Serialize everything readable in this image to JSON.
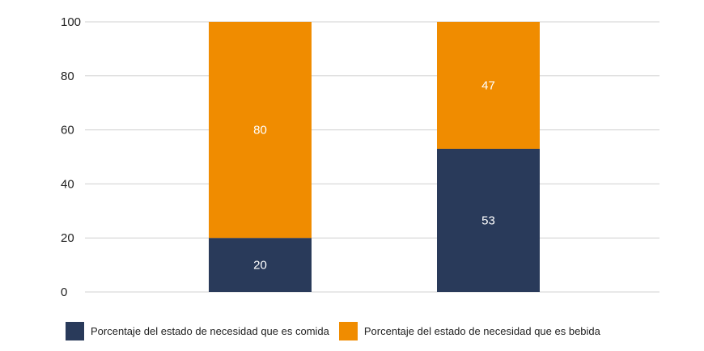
{
  "chart_data": {
    "type": "bar",
    "stacked": true,
    "categories": [
      "",
      ""
    ],
    "series": [
      {
        "name": "Porcentaje del estado de necesidad que es comida",
        "values": [
          20,
          53
        ],
        "color": "#293a5a"
      },
      {
        "name": "Porcentaje del estado de necesidad que es bebida",
        "values": [
          80,
          47
        ],
        "color": "#f08c00"
      }
    ],
    "ylim": [
      0,
      100
    ],
    "yticks": [
      0,
      20,
      40,
      60,
      80,
      100
    ],
    "grid": true,
    "legend": "bottom",
    "title": "",
    "xlabel": "",
    "ylabel": ""
  }
}
